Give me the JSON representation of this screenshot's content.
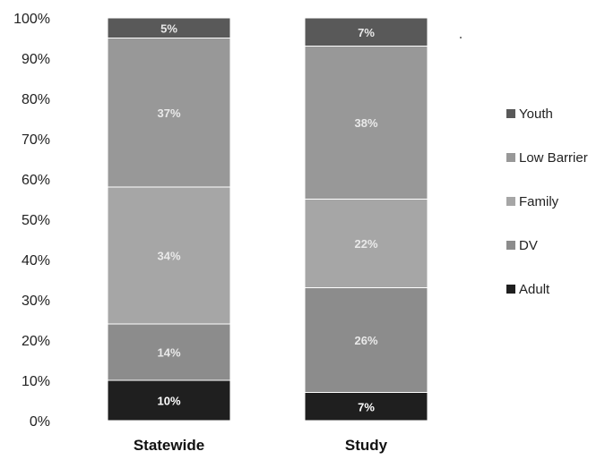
{
  "chart_data": {
    "type": "bar",
    "stacked": true,
    "categories": [
      "Statewide",
      "Study"
    ],
    "ylim": [
      0,
      100
    ],
    "y_ticks": [
      "0%",
      "10%",
      "20%",
      "30%",
      "40%",
      "50%",
      "60%",
      "70%",
      "80%",
      "90%",
      "100%"
    ],
    "legend_position": "right",
    "series": [
      {
        "name": "Adult",
        "values": [
          10,
          7
        ],
        "labels": [
          "10%",
          "7%"
        ],
        "color": "#1f1f1f"
      },
      {
        "name": "DV",
        "values": [
          14,
          26
        ],
        "labels": [
          "14%",
          "26%"
        ],
        "color": "#8c8c8c"
      },
      {
        "name": "Family",
        "values": [
          34,
          22
        ],
        "labels": [
          "34%",
          "22%"
        ],
        "color": "#a6a6a6"
      },
      {
        "name": "Low Barrier",
        "values": [
          37,
          38
        ],
        "labels": [
          "37%",
          "38%"
        ],
        "color": "#989898"
      },
      {
        "name": "Youth",
        "values": [
          5,
          7
        ],
        "labels": [
          "5%",
          "7%"
        ],
        "color": "#595959"
      }
    ],
    "grid": false
  }
}
